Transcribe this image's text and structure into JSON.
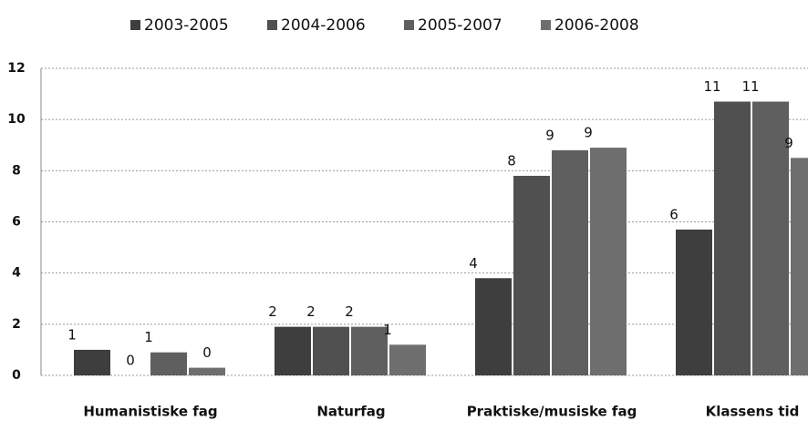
{
  "chart_data": {
    "type": "bar",
    "categories": [
      "Humanistiske fag",
      "Naturfag",
      "Praktiske/musiske fag",
      "Klassens tid"
    ],
    "series": [
      {
        "name": "2003-2005",
        "color": "#3e3e3e",
        "values": [
          1.0,
          1.9,
          3.8,
          5.7
        ],
        "value_labels": [
          "1",
          "2",
          "4",
          "6"
        ]
      },
      {
        "name": "2004-2006",
        "color": "#505050",
        "values": [
          0,
          1.9,
          7.8,
          10.7
        ],
        "value_labels": [
          "0",
          "2",
          "8",
          "11"
        ]
      },
      {
        "name": "2005-2007",
        "color": "#5f5f5f",
        "values": [
          0.9,
          1.9,
          8.8,
          10.7
        ],
        "value_labels": [
          "1",
          "2",
          "9",
          "11"
        ]
      },
      {
        "name": "2006-2008",
        "color": "#6e6e6e",
        "values": [
          0.3,
          1.2,
          8.9,
          8.5
        ],
        "value_labels": [
          "0",
          "1",
          "9",
          "9"
        ]
      }
    ],
    "ylim": [
      0,
      12
    ],
    "yticks": [
      0,
      2,
      4,
      6,
      8,
      10,
      12
    ],
    "grid": true
  }
}
